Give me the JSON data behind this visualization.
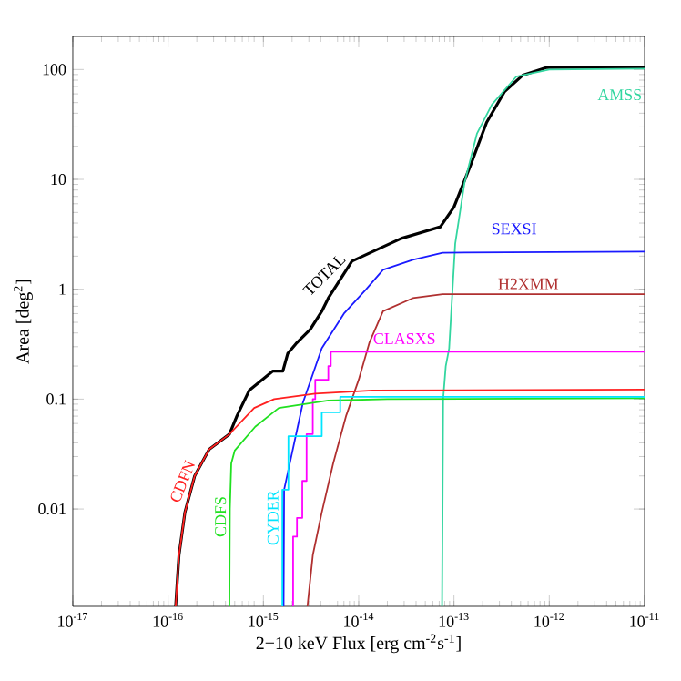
{
  "chart_data": {
    "type": "line",
    "xlabel": "2−10 keV Flux [erg cm$^{-2}$s$^{-1}$]",
    "ylabel": "Area [deg$^{2}$]",
    "log": "xy",
    "xlim": [
      1e-17,
      1e-11
    ],
    "ylim": [
      0.0013,
      200
    ],
    "xticks": [
      {
        "value": 1e-17,
        "label": "10$^{-17}$"
      },
      {
        "value": 1e-16,
        "label": "10$^{-16}$"
      },
      {
        "value": 1e-15,
        "label": "10$^{-15}$"
      },
      {
        "value": 1e-14,
        "label": "10$^{-14}$"
      },
      {
        "value": 1e-13,
        "label": "10$^{-13}$"
      },
      {
        "value": 1e-12,
        "label": "10$^{-12}$"
      },
      {
        "value": 1e-11,
        "label": "10$^{-11}$"
      }
    ],
    "yticks": [
      0.01,
      0.1,
      1,
      10,
      100
    ],
    "series": [
      {
        "name": "TOTAL",
        "color": "#000000",
        "x": [
          1.2e-16,
          1.3e-16,
          1.5e-16,
          1.9e-16,
          2.7e-16,
          4.4e-16,
          5.3e-16,
          7.1e-16,
          1.26e-15,
          1.6e-15,
          1.8e-15,
          2.2e-15,
          3.1e-15,
          4.1e-15,
          4.8e-15,
          8.5e-15,
          1.4e-14,
          2.8e-14,
          7.2e-14,
          1e-13,
          1.5e-13,
          2.2e-13,
          3.4e-13,
          5.3e-13,
          9.3e-13,
          1e-11
        ],
        "values": [
          0.0013,
          0.0038,
          0.0093,
          0.02,
          0.035,
          0.048,
          0.071,
          0.12,
          0.18,
          0.18,
          0.26,
          0.32,
          0.43,
          0.63,
          0.83,
          1.8,
          2.2,
          2.9,
          3.7,
          5.6,
          13.6,
          33,
          63,
          89,
          104,
          105
        ]
      },
      {
        "name": "AMSS",
        "color": "#33d6a0",
        "x": [
          7.5e-14,
          7.7e-14,
          8.2e-14,
          8.9e-14,
          1.03e-13,
          1.29e-13,
          1.74e-13,
          2.5e-13,
          4.5e-13,
          1e-12,
          1e-11
        ],
        "values": [
          0.0013,
          0.1,
          0.2,
          0.29,
          2.6,
          9.3,
          26,
          48,
          86,
          100,
          102
        ]
      },
      {
        "name": "SEXSI",
        "color": "#1a1aff",
        "x": [
          1.63e-15,
          1.65e-15,
          2.6e-15,
          4.1e-15,
          7e-15,
          1.2e-14,
          1.8e-14,
          3.7e-14,
          7.6e-14,
          1e-11
        ],
        "values": [
          0.0013,
          0.015,
          0.093,
          0.29,
          0.6,
          1.0,
          1.5,
          1.85,
          2.15,
          2.2
        ]
      },
      {
        "name": "H2XMM",
        "color": "#b03030",
        "x": [
          2.9e-15,
          3.3e-15,
          4.1e-15,
          5.4e-15,
          7.4e-15,
          1e-14,
          1.3e-14,
          1.8e-14,
          3.7e-14,
          7.6e-14,
          1e-11
        ],
        "values": [
          0.0013,
          0.0038,
          0.0093,
          0.026,
          0.071,
          0.15,
          0.33,
          0.63,
          0.83,
          0.9,
          0.9
        ]
      },
      {
        "name": "CLASXS",
        "type": "step",
        "color": "#ff00ff",
        "x": [
          2.05e-15,
          2.05e-15,
          2.25e-15,
          2.56e-15,
          2.84e-15,
          3.3e-15,
          3.5e-15,
          4.8e-15,
          5.1e-15,
          1e-11
        ],
        "values": [
          0.0013,
          0.0056,
          0.0083,
          0.018,
          0.048,
          0.1,
          0.15,
          0.2,
          0.27,
          0.27
        ]
      },
      {
        "name": "CDFN",
        "color": "#ff2020",
        "x": [
          1.2e-16,
          1.3e-16,
          1.5e-16,
          1.9e-16,
          2.7e-16,
          4.4e-16,
          8e-16,
          1.3e-15,
          3.5e-15,
          1.4e-14,
          1e-11
        ],
        "values": [
          0.0013,
          0.0038,
          0.0093,
          0.02,
          0.035,
          0.048,
          0.083,
          0.1,
          0.112,
          0.12,
          0.122
        ]
      },
      {
        "name": "CDFS",
        "color": "#20e020",
        "x": [
          4.4e-16,
          4.45e-16,
          4.6e-16,
          5e-16,
          8.2e-16,
          1.45e-15,
          4.8e-15,
          2e-14,
          1e-11
        ],
        "values": [
          0.0013,
          0.01,
          0.026,
          0.034,
          0.056,
          0.083,
          0.097,
          0.1,
          0.102
        ]
      },
      {
        "name": "CYDER",
        "type": "step",
        "color": "#00e5ff",
        "x": [
          1.58e-15,
          1.58e-15,
          1.83e-15,
          4.1e-15,
          6.4e-15,
          1e-11
        ],
        "values": [
          0.0013,
          0.015,
          0.046,
          0.076,
          0.105,
          0.105
        ]
      }
    ]
  }
}
